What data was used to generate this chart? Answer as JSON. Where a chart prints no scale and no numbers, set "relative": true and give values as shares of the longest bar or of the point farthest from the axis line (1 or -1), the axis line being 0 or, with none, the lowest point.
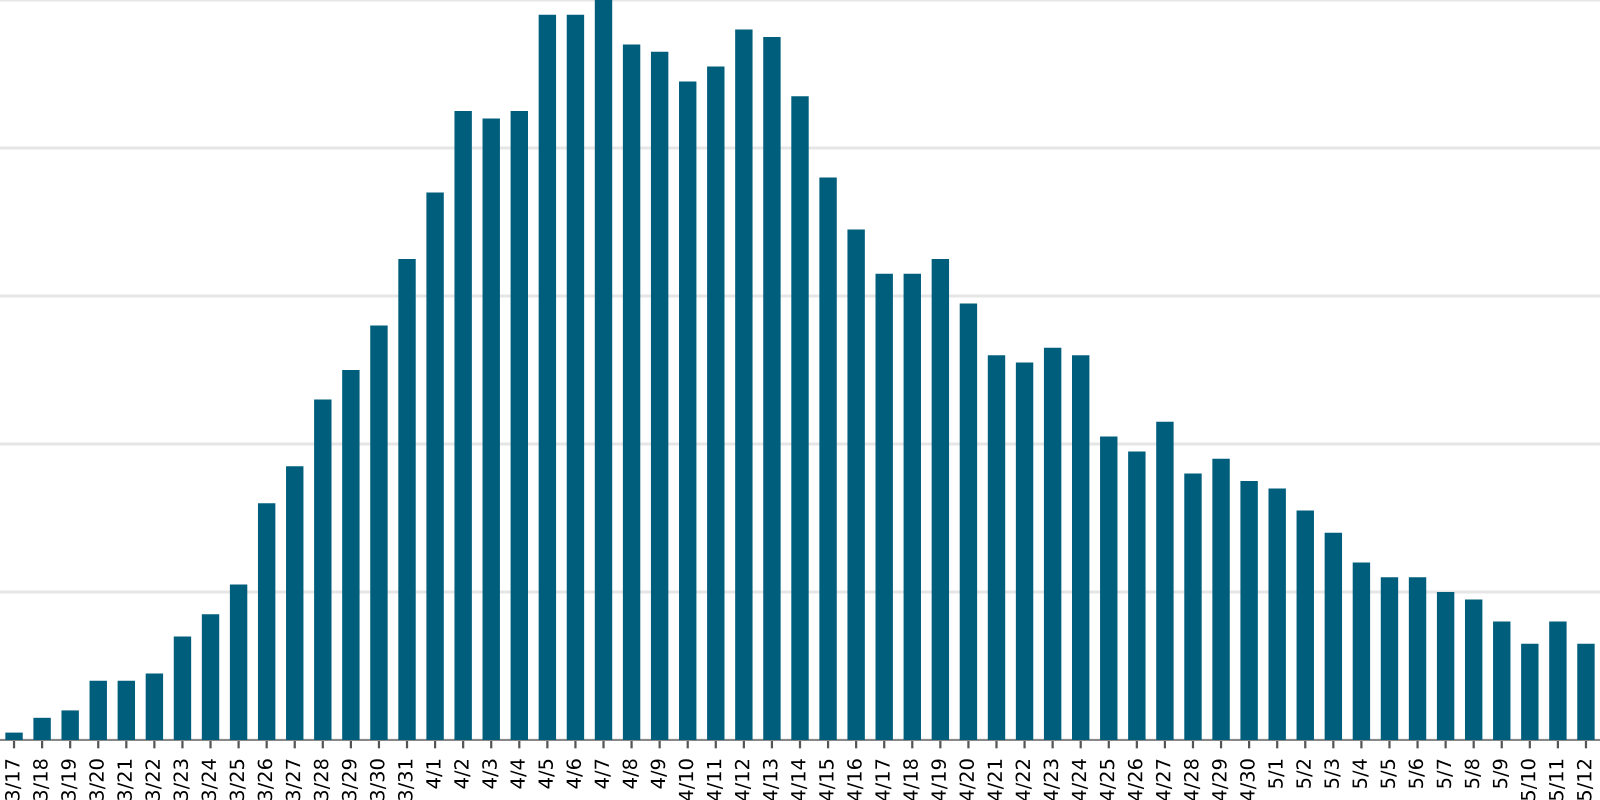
{
  "chart_data": {
    "type": "bar",
    "relative": true,
    "grid": "y",
    "tick_labels": "x",
    "color": "#005e7d",
    "categories": [
      "3/17",
      "3/18",
      "3/19",
      "3/20",
      "3/21",
      "3/22",
      "3/23",
      "3/24",
      "3/25",
      "3/26",
      "3/27",
      "3/28",
      "3/29",
      "3/30",
      "3/31",
      "4/1",
      "4/2",
      "4/3",
      "4/4",
      "4/5",
      "4/6",
      "4/7",
      "4/8",
      "4/9",
      "4/10",
      "4/11",
      "4/12",
      "4/13",
      "4/14",
      "4/15",
      "4/16",
      "4/17",
      "4/18",
      "4/19",
      "4/20",
      "4/21",
      "4/22",
      "4/23",
      "4/24",
      "4/25",
      "4/26",
      "4/27",
      "4/28",
      "4/29",
      "4/30",
      "5/1",
      "5/2",
      "5/3",
      "5/4",
      "5/5",
      "5/6",
      "5/7",
      "5/8",
      "5/9",
      "5/10",
      "5/11",
      "5/12"
    ],
    "values": [
      0.01,
      0.03,
      0.04,
      0.08,
      0.08,
      0.09,
      0.14,
      0.17,
      0.21,
      0.32,
      0.37,
      0.46,
      0.5,
      0.56,
      0.65,
      0.74,
      0.85,
      0.84,
      0.85,
      0.98,
      0.98,
      1,
      0.94,
      0.93,
      0.89,
      0.91,
      0.96,
      0.95,
      0.87,
      0.76,
      0.69,
      0.63,
      0.63,
      0.65,
      0.59,
      0.52,
      0.51,
      0.53,
      0.52,
      0.41,
      0.39,
      0.43,
      0.36,
      0.38,
      0.35,
      0.34,
      0.31,
      0.28,
      0.24,
      0.22,
      0.22,
      0.2,
      0.19,
      0.16,
      0.13,
      0.16,
      0.13
    ]
  }
}
